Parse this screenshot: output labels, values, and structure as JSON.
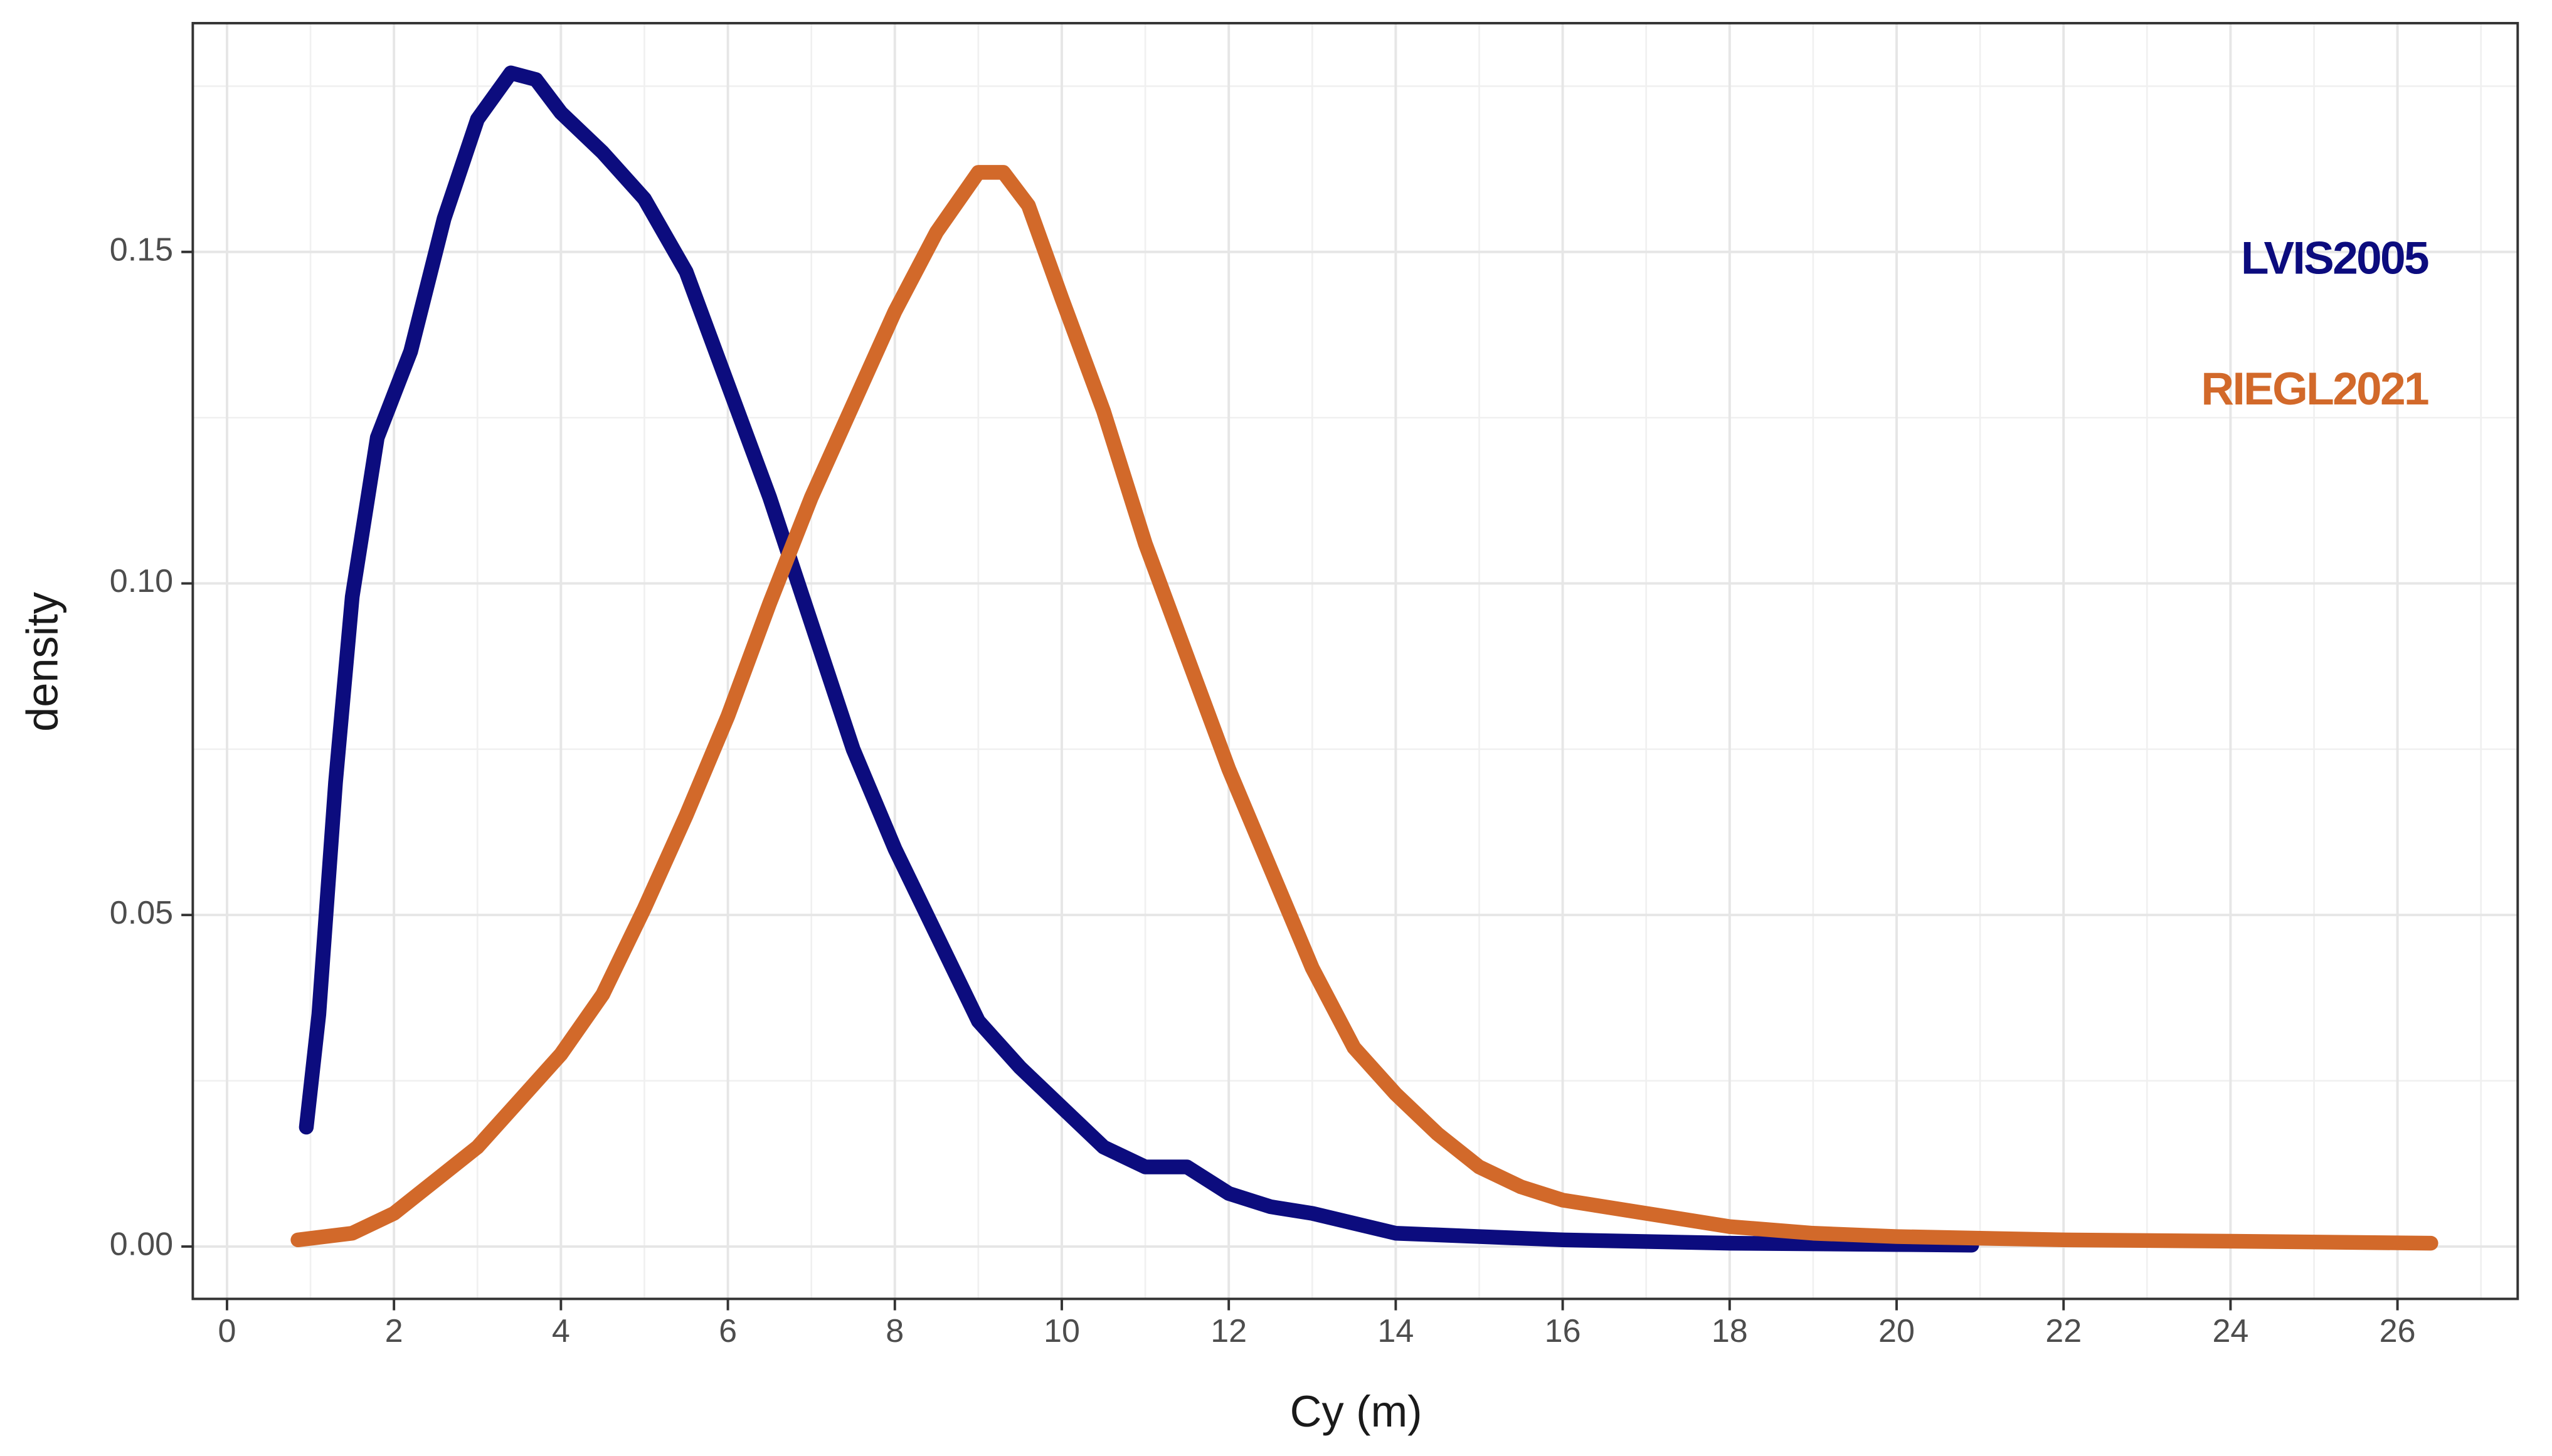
{
  "chart_data": {
    "type": "line",
    "x_label": "Cy (m)",
    "y_label": "density",
    "xlim": [
      -0.41,
      27.44
    ],
    "ylim": [
      -0.0079,
      0.1845
    ],
    "xticks": [
      0,
      2,
      4,
      6,
      8,
      10,
      12,
      14,
      16,
      18,
      20,
      22,
      24,
      26
    ],
    "yticks": [
      {
        "value": 0,
        "label": "0.00"
      },
      0.05,
      {
        "value": 0.1,
        "label": "0.10"
      },
      0.15
    ],
    "grid": true,
    "legend": "top-right",
    "series": [
      {
        "name": "LVIS2005",
        "color": "#0c0c7e",
        "x": [
          0.95,
          1.1,
          1.3,
          1.5,
          1.8,
          2.2,
          2.6,
          3.0,
          3.4,
          3.7,
          4.0,
          4.5,
          5.0,
          5.5,
          6.0,
          6.5,
          7.0,
          7.5,
          8.0,
          8.5,
          9.0,
          9.5,
          10.0,
          10.5,
          11.0,
          11.5,
          12.0,
          12.5,
          13.0,
          14.0,
          15.0,
          16.0,
          18.0,
          20.0,
          20.9
        ],
        "values": [
          0.018,
          0.035,
          0.07,
          0.098,
          0.122,
          0.135,
          0.155,
          0.17,
          0.177,
          0.176,
          0.171,
          0.165,
          0.158,
          0.147,
          0.13,
          0.113,
          0.094,
          0.075,
          0.06,
          0.047,
          0.034,
          0.027,
          0.021,
          0.015,
          0.012,
          0.012,
          0.008,
          0.006,
          0.005,
          0.002,
          0.0015,
          0.001,
          0.0005,
          0.0003,
          0.0002
        ]
      },
      {
        "name": "RIEGL2021",
        "color": "#d2692a",
        "x": [
          0.85,
          1.5,
          2.0,
          2.5,
          3.0,
          3.5,
          4.0,
          4.5,
          5.0,
          5.5,
          6.0,
          6.5,
          7.0,
          7.5,
          8.0,
          8.5,
          9.0,
          9.3,
          9.6,
          10.0,
          10.5,
          11.0,
          11.5,
          12.0,
          12.5,
          13.0,
          13.5,
          14.0,
          14.5,
          15.0,
          15.5,
          16.0,
          17.0,
          18.0,
          19.0,
          20.0,
          22.0,
          24.0,
          26.4
        ],
        "values": [
          0.001,
          0.002,
          0.005,
          0.01,
          0.015,
          0.022,
          0.029,
          0.038,
          0.051,
          0.065,
          0.08,
          0.097,
          0.113,
          0.127,
          0.141,
          0.153,
          0.162,
          0.162,
          0.157,
          0.143,
          0.126,
          0.106,
          0.089,
          0.072,
          0.057,
          0.042,
          0.03,
          0.023,
          0.017,
          0.012,
          0.009,
          0.007,
          0.005,
          0.003,
          0.002,
          0.0015,
          0.001,
          0.0008,
          0.0005
        ]
      }
    ]
  }
}
